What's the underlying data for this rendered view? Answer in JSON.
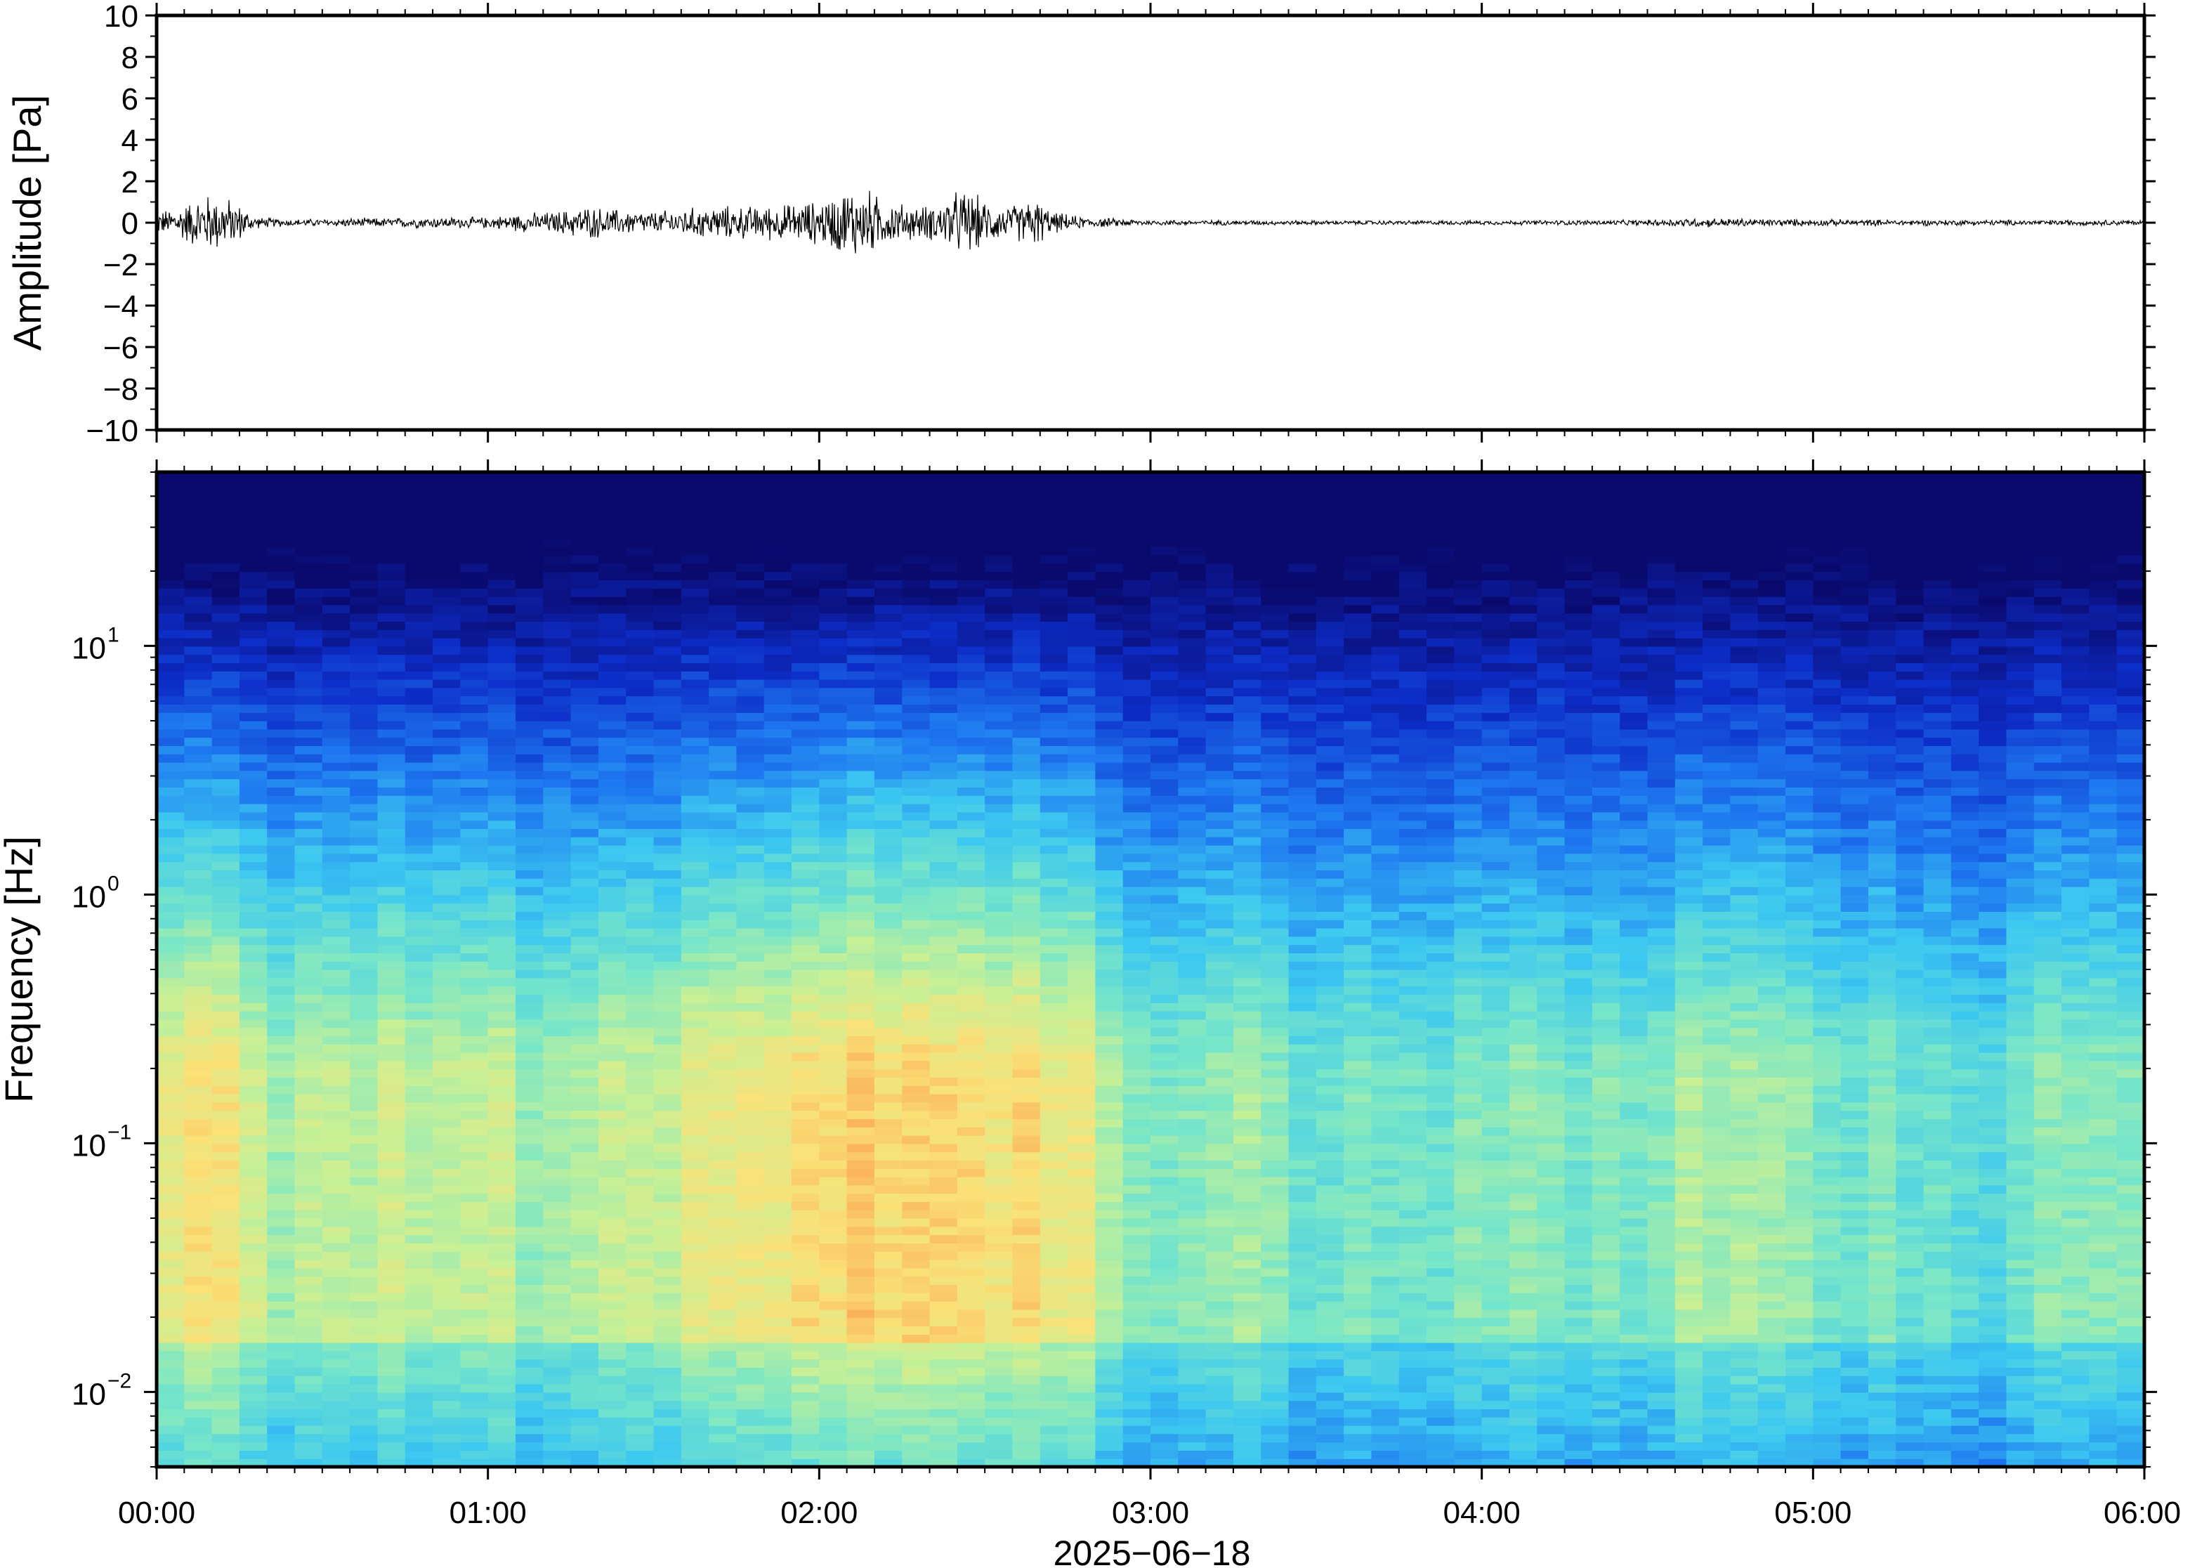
{
  "chart_data": [
    {
      "type": "line",
      "panel": "waveform",
      "ylabel": "Amplitude [Pa]",
      "ylim": [
        -10,
        10
      ],
      "yticks": [
        10,
        8,
        6,
        4,
        2,
        0,
        -2,
        -4,
        -6,
        -8,
        -10
      ],
      "ytick_labels": [
        "10",
        "8",
        "6",
        "4",
        "2",
        "0",
        "−2",
        "−4",
        "−6",
        "−8",
        "−10"
      ],
      "xlim_hours": [
        0,
        6
      ],
      "series": [
        {
          "envelope_hours": [
            0.0,
            0.05,
            0.1,
            0.15,
            0.2,
            0.25,
            0.3,
            0.4,
            0.5,
            0.6,
            0.7,
            0.8,
            0.9,
            1.0,
            1.1,
            1.2,
            1.3,
            1.4,
            1.5,
            1.6,
            1.7,
            1.8,
            1.9,
            2.0,
            2.05,
            2.1,
            2.15,
            2.2,
            2.3,
            2.35,
            2.4,
            2.45,
            2.5,
            2.55,
            2.6,
            2.65,
            2.7,
            2.8,
            3.0,
            3.5,
            4.0,
            4.5,
            4.6,
            4.7,
            5.0,
            5.5,
            6.0
          ],
          "envelope_pa": [
            0.6,
            0.8,
            1.2,
            1.6,
            1.5,
            1.0,
            0.3,
            0.2,
            0.2,
            0.25,
            0.25,
            0.3,
            0.3,
            0.3,
            0.5,
            0.6,
            0.9,
            0.7,
            0.6,
            0.8,
            0.9,
            0.9,
            1.0,
            1.2,
            1.6,
            2.0,
            1.8,
            1.2,
            0.9,
            1.0,
            1.6,
            1.8,
            1.2,
            0.9,
            1.0,
            1.4,
            0.6,
            0.3,
            0.15,
            0.12,
            0.12,
            0.15,
            0.25,
            0.25,
            0.18,
            0.15,
            0.15
          ]
        }
      ]
    },
    {
      "type": "heatmap",
      "panel": "spectrogram",
      "ylabel": "Frequency [Hz]",
      "yscale": "log",
      "ylim": [
        0.005,
        50
      ],
      "yticks": [
        0.01,
        0.1,
        1,
        10
      ],
      "ytick_labels": [
        {
          "base": "10",
          "exp": "−2"
        },
        {
          "base": "10",
          "exp": "−1"
        },
        {
          "base": "10",
          "exp": "0"
        },
        {
          "base": "10",
          "exp": "1"
        }
      ],
      "xlabel": "2025−06−18",
      "xlim_hours": [
        0,
        6
      ],
      "xticks_hours": [
        0,
        1,
        2,
        3,
        4,
        5,
        6
      ],
      "xtick_labels": [
        "00:00",
        "01:00",
        "02:00",
        "03:00",
        "04:00",
        "05:00",
        "06:00"
      ],
      "colormap": "rainbow (dark-blue → cyan → yellow → red)",
      "colormap_stops": [
        "#0a0a6e",
        "#0d2dc8",
        "#1e78f0",
        "#3cc8f0",
        "#78e6c8",
        "#c8f096",
        "#fae178",
        "#faa050",
        "#f05050"
      ],
      "column_intensity_hours": [
        0.0,
        0.25,
        0.35,
        1.0,
        1.1,
        2.0,
        2.1,
        2.5,
        2.85,
        2.9,
        3.35,
        3.4,
        4.5,
        4.65,
        5.0,
        5.6,
        5.7,
        6.0
      ],
      "column_intensity": [
        0.7,
        0.8,
        0.45,
        0.6,
        0.35,
        0.85,
        0.9,
        0.85,
        0.7,
        0.25,
        0.45,
        0.25,
        0.3,
        0.4,
        0.3,
        0.15,
        0.35,
        0.2
      ]
    }
  ]
}
